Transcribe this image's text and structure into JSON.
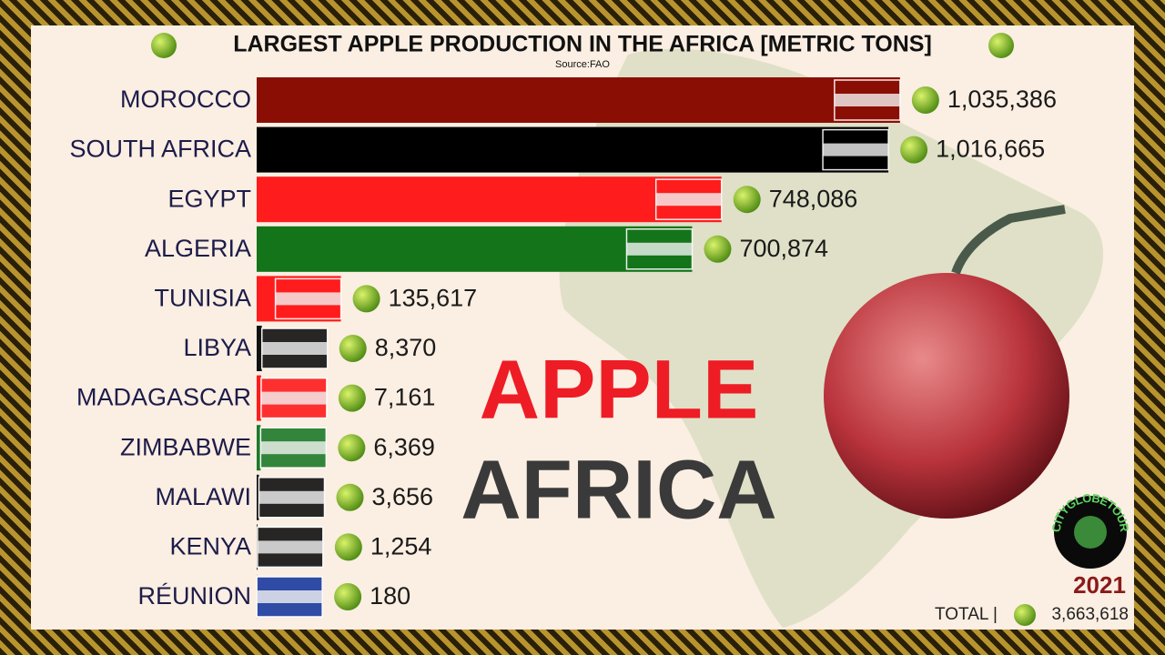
{
  "chart_data": {
    "type": "bar",
    "orientation": "horizontal",
    "title": "LARGEST APPLE PRODUCTION IN THE AFRICA [METRIC TONS]",
    "subtitle": "Source:FAO",
    "categories": [
      "MOROCCO",
      "SOUTH AFRICA",
      "EGYPT",
      "ALGERIA",
      "TUNISIA",
      "LIBYA",
      "MADAGASCAR",
      "ZIMBABWE",
      "MALAWI",
      "KENYA",
      "RÉUNION"
    ],
    "values": [
      1035386,
      1016665,
      748086,
      700874,
      135617,
      8370,
      7161,
      6369,
      3656,
      1254,
      180
    ],
    "value_labels": [
      "1,035,386",
      "1,016,665",
      "748,086",
      "700,874",
      "135,617",
      "8,370",
      "7,161",
      "6,369",
      "3,656",
      "1,254",
      "180"
    ],
    "colors": [
      "#8b0e04",
      "#000000",
      "#ff1c1c",
      "#13741a",
      "#ff1c1c",
      "#111111",
      "#ff1c1c",
      "#1d7a2a",
      "#111111",
      "#111111",
      "#1a3aa0"
    ],
    "xlim": [
      0,
      1040000
    ],
    "headline": [
      "APPLE",
      "AFRICA"
    ],
    "year": "2021",
    "total_label": "TOTAL |",
    "total": "3,663,618",
    "logo": "CITYGLOBETOUR"
  }
}
